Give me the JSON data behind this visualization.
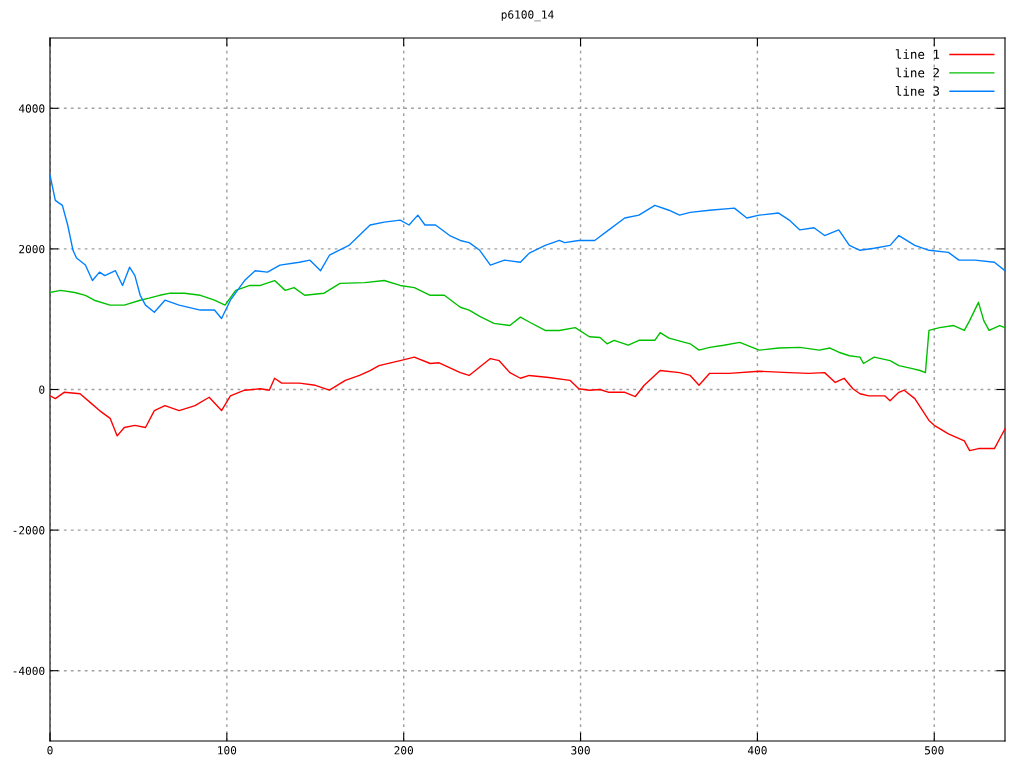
{
  "chart_data": {
    "type": "line",
    "title": "p6100_14",
    "xlim": [
      0,
      540
    ],
    "xticks": [
      0,
      100,
      200,
      300,
      400,
      500
    ],
    "ylim": [
      -5000,
      5000
    ],
    "yticks": [
      -4000,
      -2000,
      0,
      2000,
      4000
    ],
    "grid": true,
    "legend": "top right",
    "line_style": "solid",
    "series": [
      {
        "name": "line 1",
        "color": "#ff0000",
        "x": [
          0,
          3,
          8,
          17,
          23,
          28,
          34,
          38,
          42,
          48,
          54,
          59,
          65,
          73,
          82,
          90,
          97,
          102,
          110,
          119,
          124,
          127,
          131,
          141,
          150,
          158,
          167,
          175,
          181,
          186,
          198,
          206,
          215,
          220,
          232,
          237,
          249,
          254,
          260,
          266,
          271,
          282,
          294,
          299,
          305,
          311,
          316,
          325,
          331,
          336,
          345,
          356,
          362,
          367,
          373,
          384,
          401,
          418,
          429,
          438,
          444,
          449,
          454,
          458,
          463,
          472,
          475,
          480,
          483,
          489,
          497,
          500,
          508,
          517,
          520,
          525,
          534,
          540
        ],
        "values": [
          -90,
          -130,
          -40,
          -60,
          -190,
          -300,
          -410,
          -660,
          -540,
          -510,
          -540,
          -300,
          -230,
          -300,
          -230,
          -110,
          -300,
          -90,
          -10,
          10,
          -10,
          160,
          90,
          90,
          60,
          -10,
          130,
          200,
          270,
          340,
          410,
          460,
          370,
          380,
          240,
          200,
          440,
          410,
          240,
          160,
          200,
          170,
          130,
          10,
          -10,
          0,
          -40,
          -40,
          -100,
          60,
          270,
          240,
          200,
          60,
          230,
          230,
          260,
          240,
          230,
          240,
          100,
          160,
          10,
          -60,
          -90,
          -90,
          -160,
          -40,
          -10,
          -130,
          -440,
          -510,
          -630,
          -730,
          -870,
          -840,
          -840,
          -560
        ]
      },
      {
        "name": "line 2",
        "color": "#00c000",
        "x": [
          0,
          6,
          14,
          20,
          25,
          34,
          42,
          51,
          56,
          62,
          68,
          76,
          85,
          93,
          99,
          105,
          113,
          119,
          127,
          133,
          138,
          144,
          155,
          164,
          178,
          189,
          198,
          206,
          215,
          223,
          232,
          237,
          243,
          251,
          260,
          266,
          271,
          280,
          288,
          297,
          305,
          311,
          315,
          319,
          327,
          333,
          342,
          345,
          350,
          362,
          367,
          373,
          381,
          390,
          401,
          412,
          424,
          435,
          441,
          446,
          452,
          458,
          460,
          466,
          475,
          480,
          487,
          492,
          495,
          497,
          503,
          511,
          517,
          520,
          525,
          528,
          531,
          537,
          540
        ],
        "values": [
          1380,
          1410,
          1380,
          1340,
          1270,
          1200,
          1200,
          1270,
          1300,
          1340,
          1370,
          1370,
          1340,
          1270,
          1200,
          1410,
          1480,
          1480,
          1550,
          1410,
          1450,
          1340,
          1370,
          1510,
          1520,
          1550,
          1480,
          1450,
          1340,
          1340,
          1170,
          1130,
          1040,
          940,
          910,
          1030,
          960,
          840,
          840,
          880,
          750,
          740,
          650,
          700,
          630,
          700,
          700,
          810,
          730,
          650,
          560,
          600,
          630,
          670,
          560,
          590,
          600,
          560,
          590,
          530,
          480,
          460,
          370,
          460,
          410,
          340,
          300,
          270,
          240,
          840,
          880,
          910,
          840,
          980,
          1240,
          980,
          840,
          910,
          880
        ]
      },
      {
        "name": "line 3",
        "color": "#0080ff",
        "x": [
          0,
          3,
          7,
          10,
          13,
          15,
          20,
          24,
          28,
          31,
          37,
          41,
          45,
          48,
          51,
          54,
          59,
          65,
          73,
          85,
          93,
          97,
          102,
          110,
          116,
          123,
          130,
          141,
          147,
          153,
          158,
          169,
          181,
          189,
          198,
          203,
          208,
          212,
          218,
          226,
          232,
          237,
          243,
          249,
          257,
          266,
          271,
          280,
          288,
          291,
          299,
          308,
          316,
          325,
          333,
          342,
          350,
          356,
          362,
          373,
          387,
          394,
          401,
          412,
          418,
          424,
          432,
          438,
          446,
          452,
          458,
          466,
          475,
          480,
          489,
          497,
          508,
          514,
          523,
          534,
          540
        ],
        "values": [
          3050,
          2690,
          2620,
          2340,
          1980,
          1870,
          1770,
          1550,
          1670,
          1620,
          1690,
          1480,
          1740,
          1620,
          1340,
          1200,
          1100,
          1270,
          1200,
          1130,
          1130,
          1010,
          1270,
          1550,
          1690,
          1670,
          1770,
          1810,
          1840,
          1690,
          1910,
          2050,
          2340,
          2380,
          2410,
          2340,
          2480,
          2340,
          2340,
          2190,
          2120,
          2090,
          1980,
          1770,
          1840,
          1810,
          1940,
          2050,
          2120,
          2090,
          2120,
          2120,
          2270,
          2440,
          2480,
          2620,
          2550,
          2480,
          2520,
          2550,
          2580,
          2440,
          2480,
          2510,
          2410,
          2270,
          2300,
          2190,
          2270,
          2050,
          1980,
          2010,
          2050,
          2190,
          2050,
          1980,
          1950,
          1840,
          1840,
          1810,
          1690
        ]
      }
    ]
  }
}
